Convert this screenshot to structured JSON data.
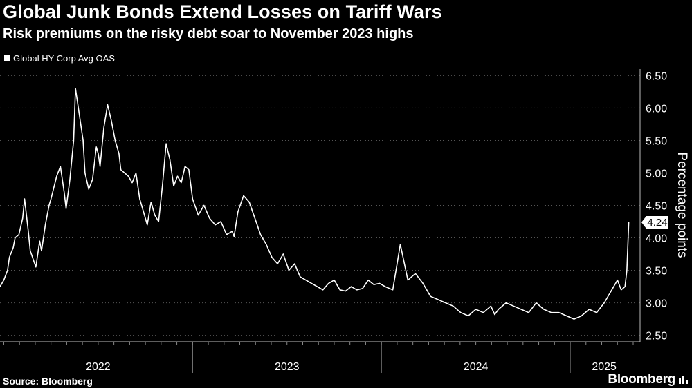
{
  "header": {
    "title": "Global Junk Bonds Extend Losses on Tariff Wars",
    "subtitle": "Risk premiums on the risky debt soar to November 2023 highs"
  },
  "footer": {
    "source": "Source: Bloomberg",
    "brand": "Bloomberg"
  },
  "colors": {
    "background": "#000000",
    "line": "#ffffff",
    "grid": "#555555"
  },
  "chart_data": {
    "type": "line",
    "title": "Global Junk Bonds Extend Losses on Tariff Wars",
    "subtitle": "Risk premiums on the risky debt soar to November 2023 highs",
    "xlabel": "",
    "ylabel": "Percentage points",
    "ylim": [
      2.4,
      6.6
    ],
    "xlim": [
      2021.98,
      2025.37
    ],
    "yticks": [
      2.5,
      3.0,
      3.5,
      4.0,
      4.5,
      5.0,
      5.5,
      6.0,
      6.5
    ],
    "ytick_labels": [
      "2.50",
      "3.00",
      "3.50",
      "4.00",
      "4.50",
      "5.00",
      "5.50",
      "6.00",
      "6.50"
    ],
    "xtick_labels": [
      {
        "label": "2022",
        "x": 2022.5
      },
      {
        "label": "2023",
        "x": 2023.5
      },
      {
        "label": "2024",
        "x": 2024.5
      },
      {
        "label": "2025",
        "x": 2025.18
      }
    ],
    "year_boundaries": [
      2023.0,
      2024.0,
      2025.0
    ],
    "legend": [
      "Global HY Corp Avg OAS"
    ],
    "last_value_label": "4.24",
    "grid": true,
    "series": [
      {
        "name": "Global HY Corp Avg OAS",
        "x": [
          2021.98,
          2022.0,
          2022.02,
          2022.03,
          2022.05,
          2022.06,
          2022.08,
          2022.1,
          2022.11,
          2022.13,
          2022.14,
          2022.17,
          2022.19,
          2022.2,
          2022.22,
          2022.24,
          2022.25,
          2022.28,
          2022.3,
          2022.32,
          2022.33,
          2022.35,
          2022.37,
          2022.38,
          2022.4,
          2022.42,
          2022.43,
          2022.45,
          2022.47,
          2022.49,
          2022.5,
          2022.51,
          2022.53,
          2022.55,
          2022.57,
          2022.59,
          2022.61,
          2022.62,
          2022.64,
          2022.66,
          2022.68,
          2022.7,
          2022.72,
          2022.74,
          2022.76,
          2022.78,
          2022.8,
          2022.82,
          2022.84,
          2022.86,
          2022.88,
          2022.9,
          2022.92,
          2022.94,
          2022.96,
          2022.98,
          2023.0,
          2023.03,
          2023.06,
          2023.09,
          2023.12,
          2023.15,
          2023.18,
          2023.21,
          2023.22,
          2023.24,
          2023.27,
          2023.3,
          2023.33,
          2023.36,
          2023.39,
          2023.42,
          2023.45,
          2023.48,
          2023.51,
          2023.54,
          2023.57,
          2023.6,
          2023.63,
          2023.66,
          2023.69,
          2023.72,
          2023.75,
          2023.78,
          2023.81,
          2023.84,
          2023.87,
          2023.9,
          2023.93,
          2023.96,
          2023.99,
          2024.02,
          2024.06,
          2024.1,
          2024.14,
          2024.18,
          2024.22,
          2024.26,
          2024.3,
          2024.34,
          2024.38,
          2024.42,
          2024.46,
          2024.5,
          2024.54,
          2024.58,
          2024.6,
          2024.62,
          2024.66,
          2024.7,
          2024.74,
          2024.78,
          2024.82,
          2024.86,
          2024.9,
          2024.94,
          2024.98,
          2025.02,
          2025.06,
          2025.1,
          2025.14,
          2025.18,
          2025.22,
          2025.25,
          2025.27,
          2025.29,
          2025.3,
          2025.31
        ],
        "y": [
          3.25,
          3.35,
          3.5,
          3.7,
          3.85,
          4.0,
          4.05,
          4.3,
          4.6,
          4.1,
          3.8,
          3.55,
          3.95,
          3.8,
          4.2,
          4.5,
          4.6,
          4.95,
          5.1,
          4.7,
          4.45,
          4.9,
          5.5,
          6.3,
          5.9,
          5.5,
          5.0,
          4.75,
          4.9,
          5.4,
          5.3,
          5.1,
          5.7,
          6.05,
          5.8,
          5.5,
          5.3,
          5.05,
          5.0,
          4.95,
          4.85,
          5.0,
          4.6,
          4.4,
          4.2,
          4.55,
          4.35,
          4.25,
          4.8,
          5.45,
          5.2,
          4.8,
          4.95,
          4.85,
          5.1,
          5.05,
          4.6,
          4.35,
          4.5,
          4.3,
          4.2,
          4.25,
          4.05,
          4.1,
          4.02,
          4.4,
          4.65,
          4.55,
          4.3,
          4.05,
          3.9,
          3.7,
          3.6,
          3.75,
          3.5,
          3.6,
          3.4,
          3.35,
          3.3,
          3.25,
          3.2,
          3.3,
          3.35,
          3.2,
          3.18,
          3.25,
          3.2,
          3.22,
          3.35,
          3.28,
          3.3,
          3.25,
          3.2,
          3.9,
          3.35,
          3.45,
          3.3,
          3.1,
          3.05,
          3.0,
          2.95,
          2.85,
          2.8,
          2.9,
          2.85,
          2.95,
          2.82,
          2.9,
          3.0,
          2.95,
          2.9,
          2.85,
          3.0,
          2.9,
          2.85,
          2.85,
          2.8,
          2.75,
          2.8,
          2.9,
          2.85,
          3.0,
          3.2,
          3.35,
          3.2,
          3.25,
          3.5,
          4.24
        ]
      }
    ]
  }
}
